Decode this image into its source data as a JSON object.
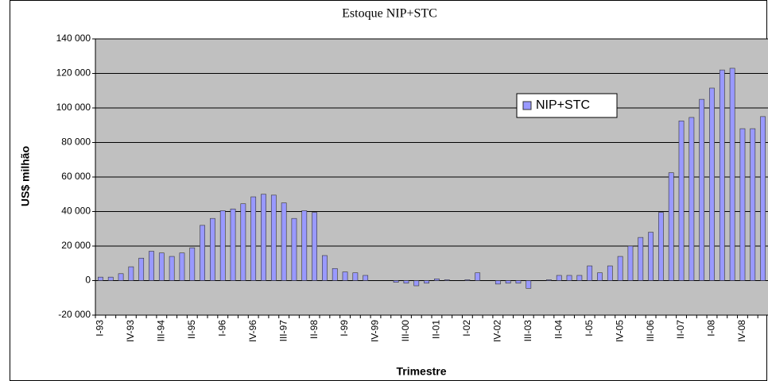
{
  "chart_data": {
    "type": "bar",
    "title": "Estoque NIP+STC",
    "xlabel": "Trimestre",
    "ylabel": "US$ milhão",
    "categories": [
      "I-93",
      null,
      null,
      "IV-93",
      null,
      null,
      "III-94",
      null,
      null,
      "II-95",
      null,
      null,
      "I-96",
      null,
      null,
      "IV-96",
      null,
      null,
      "III-97",
      null,
      null,
      "II-98",
      null,
      null,
      "I-99",
      null,
      null,
      "IV-99",
      null,
      null,
      "III-00",
      null,
      null,
      "II-01",
      null,
      null,
      "I-02",
      null,
      null,
      "IV-02",
      null,
      null,
      "III-03",
      null,
      null,
      "II-04",
      null,
      null,
      "I-05",
      null,
      null,
      "IV-05",
      null,
      null,
      "III-06",
      null,
      null,
      "II-07",
      null,
      null,
      "I-08",
      null,
      null,
      "IV-08",
      null,
      null
    ],
    "series": [
      {
        "name": "NIP+STC",
        "color": "#9999ff",
        "values": [
          2000,
          2000,
          4000,
          8000,
          13000,
          17000,
          16000,
          14000,
          16000,
          19000,
          32000,
          36000,
          40500,
          41500,
          44500,
          48500,
          50000,
          49500,
          45000,
          36000,
          40500,
          39500,
          14500,
          7000,
          5000,
          4500,
          3000,
          0,
          0,
          -1000,
          -1500,
          -3000,
          -1500,
          1000,
          500,
          0,
          500,
          4500,
          0,
          -2000,
          -1500,
          -1500,
          -4500,
          0,
          500,
          3000,
          3000,
          3000,
          8500,
          4500,
          8500,
          14000,
          20000,
          25000,
          28000,
          39500,
          62500,
          92500,
          94500,
          105000,
          111500,
          122000,
          123000,
          88000,
          88000,
          95000
        ]
      }
    ],
    "ylim": [
      -20000,
      140000
    ],
    "yticks": [
      {
        "value": -20000,
        "label": "-20 000"
      },
      0,
      {
        "value": 20000,
        "label": "20 000"
      },
      {
        "value": 40000,
        "label": "40 000"
      },
      {
        "value": 60000,
        "label": "60 000"
      },
      {
        "value": 80000,
        "label": "80 000"
      },
      {
        "value": 100000,
        "label": "100 000"
      },
      {
        "value": 120000,
        "label": "120 000"
      },
      {
        "value": 140000,
        "label": "140 000"
      }
    ],
    "grid": true,
    "legend": "upper right"
  }
}
